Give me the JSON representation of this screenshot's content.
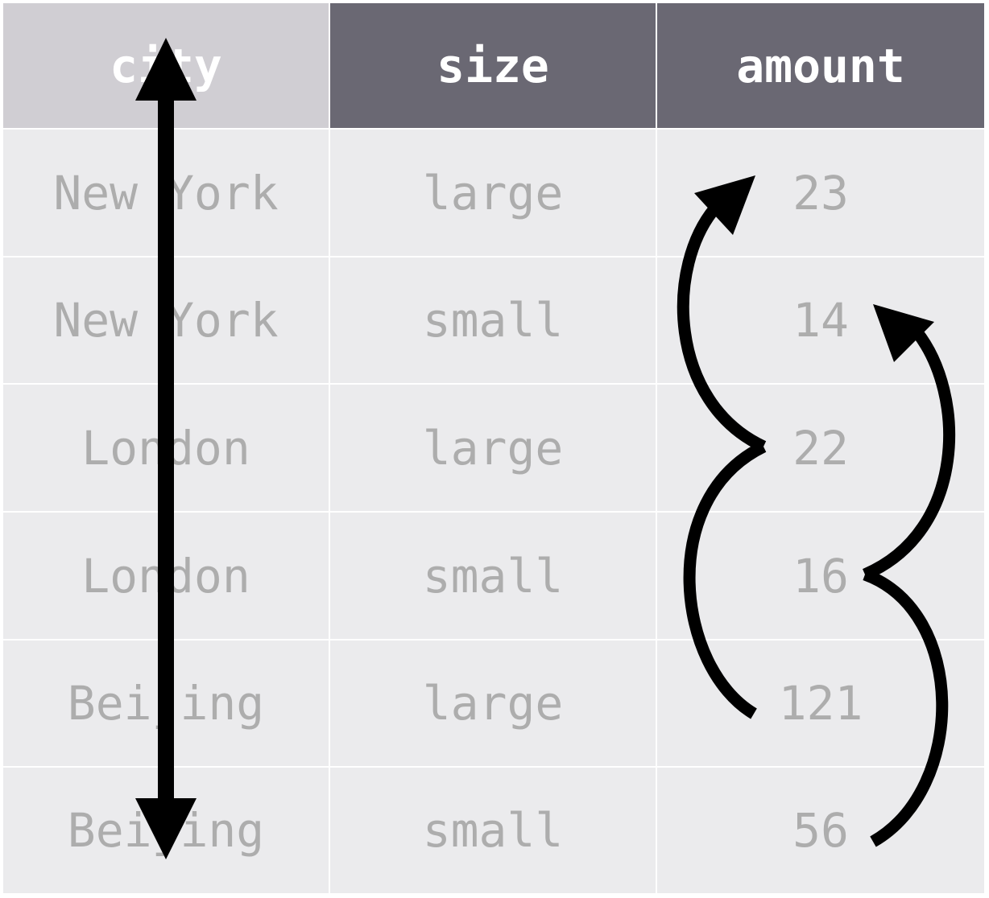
{
  "table": {
    "columns": [
      "city",
      "size",
      "amount"
    ],
    "rows": [
      [
        "New York",
        "large",
        "23"
      ],
      [
        "New York",
        "small",
        "14"
      ],
      [
        "London",
        "large",
        "22"
      ],
      [
        "London",
        "small",
        "16"
      ],
      [
        "Beijing",
        "large",
        "121"
      ],
      [
        "Beijing",
        "small",
        "56"
      ]
    ]
  },
  "colors": {
    "header_highlight": "#d0ced3",
    "header": "#6a6873",
    "cell": "#ebebed",
    "cell_text": "#adadad",
    "arrow": "#000000"
  }
}
